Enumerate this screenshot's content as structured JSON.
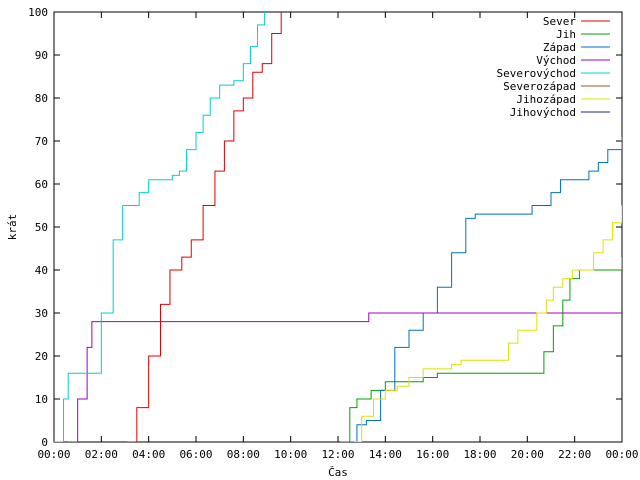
{
  "chart_data": {
    "type": "line",
    "xlabel": "Čas",
    "ylabel": "krát",
    "xlim": [
      0,
      24
    ],
    "ylim": [
      0,
      100
    ],
    "x_ticks": [
      {
        "value": 0,
        "label": "00:00"
      },
      {
        "value": 2,
        "label": "02:00"
      },
      {
        "value": 4,
        "label": "04:00"
      },
      {
        "value": 6,
        "label": "06:00"
      },
      {
        "value": 8,
        "label": "08:00"
      },
      {
        "value": 10,
        "label": "10:00"
      },
      {
        "value": 12,
        "label": "12:00"
      },
      {
        "value": 14,
        "label": "14:00"
      },
      {
        "value": 16,
        "label": "16:00"
      },
      {
        "value": 18,
        "label": "18:00"
      },
      {
        "value": 20,
        "label": "20:00"
      },
      {
        "value": 22,
        "label": "22:00"
      },
      {
        "value": 24,
        "label": "00:00"
      }
    ],
    "y_ticks": [
      {
        "value": 0,
        "label": "0"
      },
      {
        "value": 10,
        "label": "10"
      },
      {
        "value": 20,
        "label": "20"
      },
      {
        "value": 30,
        "label": "30"
      },
      {
        "value": 40,
        "label": "40"
      },
      {
        "value": 50,
        "label": "50"
      },
      {
        "value": 60,
        "label": "60"
      },
      {
        "value": 70,
        "label": "70"
      },
      {
        "value": 80,
        "label": "80"
      },
      {
        "value": 90,
        "label": "90"
      },
      {
        "value": 100,
        "label": "100"
      }
    ],
    "grid": false,
    "legend_position": "top-right",
    "series": [
      {
        "name": "Sever",
        "color": "#e00000",
        "points": [
          [
            3.1,
            0
          ],
          [
            3.5,
            8
          ],
          [
            4.0,
            20
          ],
          [
            4.5,
            32
          ],
          [
            4.9,
            40
          ],
          [
            5.4,
            43
          ],
          [
            5.8,
            47
          ],
          [
            6.3,
            55
          ],
          [
            6.8,
            63
          ],
          [
            7.2,
            70
          ],
          [
            7.6,
            77
          ],
          [
            8.0,
            80
          ],
          [
            8.4,
            86
          ],
          [
            8.8,
            88
          ],
          [
            9.2,
            95
          ],
          [
            9.6,
            100
          ]
        ]
      },
      {
        "name": "Jih",
        "color": "#00a000",
        "points": [
          [
            12.1,
            0
          ],
          [
            12.5,
            8
          ],
          [
            12.8,
            10
          ],
          [
            13.4,
            12
          ],
          [
            14.0,
            14
          ],
          [
            15.6,
            15
          ],
          [
            16.2,
            16
          ],
          [
            20.4,
            16
          ],
          [
            20.7,
            21
          ],
          [
            21.1,
            27
          ],
          [
            21.5,
            33
          ],
          [
            21.8,
            38
          ],
          [
            22.2,
            40
          ],
          [
            23.8,
            40
          ],
          [
            24,
            43
          ]
        ]
      },
      {
        "name": "Západ",
        "color": "#0070c0",
        "points": [
          [
            12.3,
            0
          ],
          [
            12.8,
            4
          ],
          [
            13.2,
            5
          ],
          [
            13.8,
            12
          ],
          [
            14.4,
            22
          ],
          [
            15.0,
            26
          ],
          [
            15.6,
            30
          ],
          [
            16.2,
            36
          ],
          [
            16.8,
            44
          ],
          [
            17.4,
            52
          ],
          [
            17.8,
            53
          ],
          [
            19.8,
            53
          ],
          [
            20.2,
            55
          ],
          [
            20.6,
            55
          ],
          [
            21.0,
            58
          ],
          [
            21.4,
            61
          ],
          [
            22.2,
            61
          ],
          [
            22.6,
            63
          ],
          [
            23.0,
            65
          ],
          [
            23.4,
            68
          ],
          [
            23.8,
            68
          ],
          [
            24,
            71
          ]
        ]
      },
      {
        "name": "Východ",
        "color": "#a000c0",
        "points": [
          [
            0.6,
            0
          ],
          [
            1.0,
            10
          ],
          [
            1.4,
            22
          ],
          [
            1.6,
            28
          ],
          [
            13.1,
            28
          ],
          [
            13.3,
            30
          ],
          [
            24,
            30
          ]
        ]
      },
      {
        "name": "Severovýchod",
        "color": "#00d0d0",
        "points": [
          [
            0.0,
            0
          ],
          [
            0.4,
            10
          ],
          [
            0.6,
            16
          ],
          [
            1.5,
            16
          ],
          [
            2.0,
            30
          ],
          [
            2.5,
            47
          ],
          [
            2.9,
            55
          ],
          [
            3.6,
            58
          ],
          [
            4.0,
            61
          ],
          [
            5.0,
            62
          ],
          [
            5.3,
            63
          ],
          [
            5.6,
            68
          ],
          [
            6.0,
            72
          ],
          [
            6.3,
            76
          ],
          [
            6.6,
            80
          ],
          [
            7.0,
            83
          ],
          [
            7.6,
            84
          ],
          [
            8.0,
            88
          ],
          [
            8.3,
            92
          ],
          [
            8.6,
            97
          ],
          [
            8.9,
            100
          ]
        ]
      },
      {
        "name": "Severozápad",
        "color": "#a0522d",
        "points": []
      },
      {
        "name": "Jihozápad",
        "color": "#e0e000",
        "points": [
          [
            12.7,
            0
          ],
          [
            13.0,
            6
          ],
          [
            13.5,
            10
          ],
          [
            14.0,
            12
          ],
          [
            14.5,
            13
          ],
          [
            15.0,
            15
          ],
          [
            15.6,
            17
          ],
          [
            16.8,
            18
          ],
          [
            17.2,
            19
          ],
          [
            18.8,
            19
          ],
          [
            19.2,
            23
          ],
          [
            19.6,
            26
          ],
          [
            20.0,
            26
          ],
          [
            20.4,
            30
          ],
          [
            20.8,
            33
          ],
          [
            21.1,
            36
          ],
          [
            21.5,
            38
          ],
          [
            21.9,
            40
          ],
          [
            22.5,
            40
          ],
          [
            22.8,
            44
          ],
          [
            23.2,
            47
          ],
          [
            23.6,
            51
          ],
          [
            24,
            55
          ]
        ]
      },
      {
        "name": "Jihovýchod",
        "color": "#2020a0",
        "points": []
      }
    ]
  }
}
